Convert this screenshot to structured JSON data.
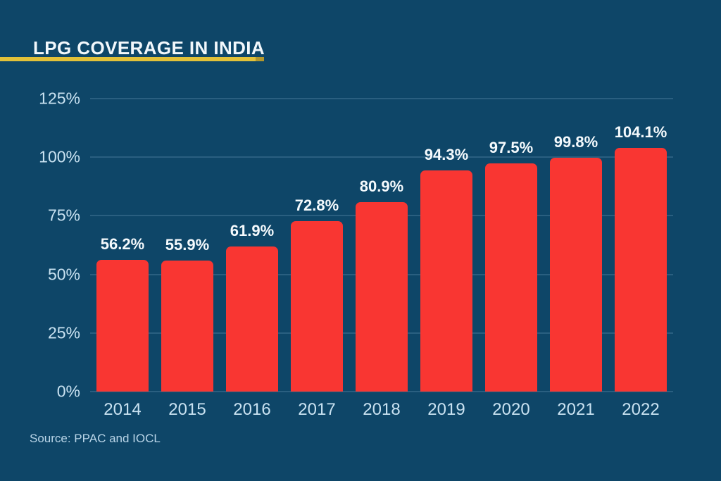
{
  "title": "LPG COVERAGE IN INDIA",
  "source_note": "Source: PPAC and IOCL",
  "colors": {
    "background": "#0E4668",
    "bar": "#F93632",
    "title_text": "#F2F8FC",
    "title_underline": "#E2C139",
    "title_underline_tip": "#B3982E",
    "axis_label": "#C9E2F1",
    "value_label": "#F5FAFD",
    "gridline": "#2A5F80",
    "source_text": "#B9D5E8"
  },
  "chart_data": {
    "type": "bar",
    "title": "LPG COVERAGE IN INDIA",
    "categories": [
      "2014",
      "2015",
      "2016",
      "2017",
      "2018",
      "2019",
      "2020",
      "2021",
      "2022"
    ],
    "values": [
      56.2,
      55.9,
      61.9,
      72.8,
      80.9,
      94.3,
      97.5,
      99.8,
      104.1
    ],
    "value_labels": [
      "56.2%",
      "55.9%",
      "61.9%",
      "72.8%",
      "80.9%",
      "94.3%",
      "97.5%",
      "99.8%",
      "104.1%"
    ],
    "xlabel": "",
    "ylabel": "",
    "ylim": [
      0,
      125
    ],
    "yticks": [
      {
        "value": 0,
        "label": "0%"
      },
      {
        "value": 25,
        "label": "25%"
      },
      {
        "value": 50,
        "label": "50%"
      },
      {
        "value": 75,
        "label": "75%"
      },
      {
        "value": 100,
        "label": "100%"
      },
      {
        "value": 125,
        "label": "125%"
      }
    ],
    "grid": true,
    "legend": false,
    "source": "Source: PPAC and IOCL"
  }
}
